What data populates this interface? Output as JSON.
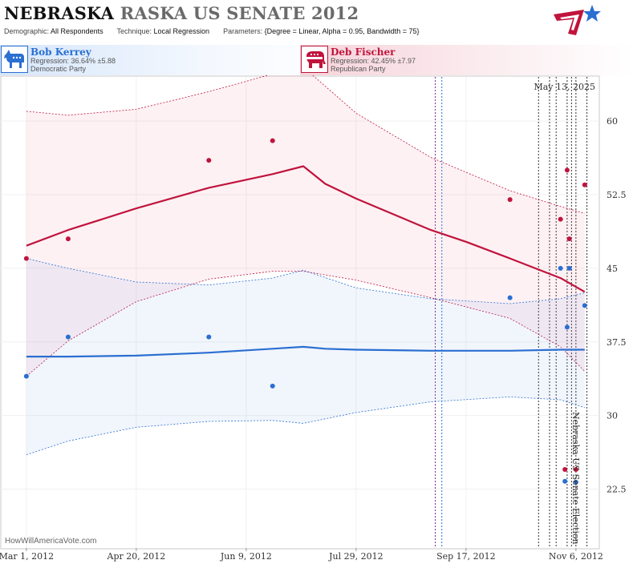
{
  "header": {
    "state": "NEBRASKA",
    "race": "RASKA US SENATE 2012",
    "demographic_label": "Demographic:",
    "demographic_value": "All Respondents",
    "technique_label": "Technique:",
    "technique_value": "Local Regression",
    "parameters_label": "Parameters:",
    "parameters_value": "{Degree = Linear, Alpha = 0.95, Bandwidth = 75}"
  },
  "legend": {
    "dem": {
      "name": "Bob Kerrey",
      "regression": "Regression: 36.64% ±5.88",
      "party": "Democratic Party",
      "color": "#2a6fd1"
    },
    "rep": {
      "name": "Deb Fischer",
      "regression": "Regression: 42.45% ±7.97",
      "party": "Republican Party",
      "color": "#c0143c"
    }
  },
  "chart_data": {
    "type": "line",
    "x_axis": {
      "min": "2012-02-18",
      "max": "2012-11-17",
      "ticks": [
        {
          "date": "2012-03-01",
          "label": "Mar 1, 2012"
        },
        {
          "date": "2012-04-20",
          "label": "Apr 20, 2012"
        },
        {
          "date": "2012-06-09",
          "label": "Jun 9, 2012"
        },
        {
          "date": "2012-07-29",
          "label": "Jul 29, 2012"
        },
        {
          "date": "2012-09-17",
          "label": "Sep 17, 2012"
        },
        {
          "date": "2012-11-06",
          "label": "Nov 6, 2012"
        }
      ]
    },
    "y_axis": {
      "min": 16.5,
      "max": 64.5,
      "ticks": [
        {
          "value": 22.5,
          "label": "22.5"
        },
        {
          "value": 30,
          "label": "30"
        },
        {
          "value": 37.5,
          "label": "37.5"
        },
        {
          "value": 45,
          "label": "45"
        },
        {
          "value": 52.5,
          "label": "52.5"
        },
        {
          "value": 60,
          "label": "60"
        }
      ]
    },
    "date_stamp": "May 13, 2025",
    "event_label": "Nebraska US Senate Election",
    "credit": "HowWillAmericaVote.com",
    "series": [
      {
        "name": "Deb Fischer",
        "color": "#c0143c",
        "points": [
          {
            "date": "2012-03-01",
            "value": 46.0
          },
          {
            "date": "2012-03-20",
            "value": 48.0
          },
          {
            "date": "2012-05-23",
            "value": 56.0
          },
          {
            "date": "2012-06-21",
            "value": 58.0
          },
          {
            "date": "2012-10-07",
            "value": 52.0
          },
          {
            "date": "2012-10-30",
            "value": 50.0
          },
          {
            "date": "2012-11-01",
            "value": 24.5
          },
          {
            "date": "2012-11-02",
            "value": 55.0
          },
          {
            "date": "2012-11-03",
            "value": 48.0
          },
          {
            "date": "2012-11-06",
            "value": 24.5
          },
          {
            "date": "2012-11-10",
            "value": 53.5
          }
        ],
        "trend": [
          {
            "date": "2012-03-01",
            "value": 47.3
          },
          {
            "date": "2012-03-20",
            "value": 48.9
          },
          {
            "date": "2012-04-20",
            "value": 51.1
          },
          {
            "date": "2012-05-23",
            "value": 53.2
          },
          {
            "date": "2012-06-21",
            "value": 54.6
          },
          {
            "date": "2012-07-05",
            "value": 55.4
          },
          {
            "date": "2012-07-15",
            "value": 53.6
          },
          {
            "date": "2012-07-29",
            "value": 52.1
          },
          {
            "date": "2012-09-01",
            "value": 48.9
          },
          {
            "date": "2012-09-17",
            "value": 47.7
          },
          {
            "date": "2012-10-07",
            "value": 46.0
          },
          {
            "date": "2012-10-30",
            "value": 44.0
          },
          {
            "date": "2012-11-10",
            "value": 42.6
          }
        ],
        "band_upper": [
          {
            "date": "2012-03-01",
            "value": 61.0
          },
          {
            "date": "2012-03-20",
            "value": 60.6
          },
          {
            "date": "2012-04-20",
            "value": 61.2
          },
          {
            "date": "2012-05-23",
            "value": 63.0
          },
          {
            "date": "2012-06-21",
            "value": 64.8
          },
          {
            "date": "2012-07-05",
            "value": 65.5
          },
          {
            "date": "2012-07-29",
            "value": 60.8
          },
          {
            "date": "2012-09-01",
            "value": 56.3
          },
          {
            "date": "2012-10-07",
            "value": 52.9
          },
          {
            "date": "2012-10-30",
            "value": 51.3
          },
          {
            "date": "2012-11-10",
            "value": 50.6
          }
        ],
        "band_lower": [
          {
            "date": "2012-03-01",
            "value": 34.0
          },
          {
            "date": "2012-03-20",
            "value": 37.6
          },
          {
            "date": "2012-04-20",
            "value": 41.6
          },
          {
            "date": "2012-05-23",
            "value": 43.9
          },
          {
            "date": "2012-06-21",
            "value": 44.7
          },
          {
            "date": "2012-07-05",
            "value": 44.7
          },
          {
            "date": "2012-07-29",
            "value": 43.8
          },
          {
            "date": "2012-09-01",
            "value": 42.0
          },
          {
            "date": "2012-10-07",
            "value": 39.9
          },
          {
            "date": "2012-10-30",
            "value": 37.0
          },
          {
            "date": "2012-11-10",
            "value": 34.5
          }
        ]
      },
      {
        "name": "Bob Kerrey",
        "color": "#2a6fd1",
        "points": [
          {
            "date": "2012-03-01",
            "value": 34.0
          },
          {
            "date": "2012-03-20",
            "value": 38.0
          },
          {
            "date": "2012-05-23",
            "value": 38.0
          },
          {
            "date": "2012-06-21",
            "value": 33.0
          },
          {
            "date": "2012-10-07",
            "value": 42.0
          },
          {
            "date": "2012-10-30",
            "value": 45.0
          },
          {
            "date": "2012-11-01",
            "value": 23.3
          },
          {
            "date": "2012-11-02",
            "value": 39.0
          },
          {
            "date": "2012-11-03",
            "value": 45.0
          },
          {
            "date": "2012-11-06",
            "value": 23.2
          },
          {
            "date": "2012-11-10",
            "value": 41.2
          }
        ],
        "trend": [
          {
            "date": "2012-03-01",
            "value": 36.0
          },
          {
            "date": "2012-03-20",
            "value": 36.0
          },
          {
            "date": "2012-04-20",
            "value": 36.1
          },
          {
            "date": "2012-05-23",
            "value": 36.4
          },
          {
            "date": "2012-06-21",
            "value": 36.8
          },
          {
            "date": "2012-07-05",
            "value": 37.0
          },
          {
            "date": "2012-07-15",
            "value": 36.8
          },
          {
            "date": "2012-07-29",
            "value": 36.7
          },
          {
            "date": "2012-09-01",
            "value": 36.6
          },
          {
            "date": "2012-10-07",
            "value": 36.6
          },
          {
            "date": "2012-10-30",
            "value": 36.7
          },
          {
            "date": "2012-11-10",
            "value": 36.7
          }
        ],
        "band_upper": [
          {
            "date": "2012-03-01",
            "value": 46.0
          },
          {
            "date": "2012-03-20",
            "value": 45.0
          },
          {
            "date": "2012-04-20",
            "value": 43.6
          },
          {
            "date": "2012-05-23",
            "value": 43.3
          },
          {
            "date": "2012-06-21",
            "value": 44.0
          },
          {
            "date": "2012-07-05",
            "value": 44.8
          },
          {
            "date": "2012-07-29",
            "value": 43.0
          },
          {
            "date": "2012-09-01",
            "value": 41.9
          },
          {
            "date": "2012-10-07",
            "value": 41.4
          },
          {
            "date": "2012-10-30",
            "value": 41.9
          },
          {
            "date": "2012-11-10",
            "value": 42.5
          }
        ],
        "band_lower": [
          {
            "date": "2012-03-01",
            "value": 26.0
          },
          {
            "date": "2012-03-20",
            "value": 27.4
          },
          {
            "date": "2012-04-20",
            "value": 28.8
          },
          {
            "date": "2012-05-23",
            "value": 29.4
          },
          {
            "date": "2012-06-21",
            "value": 29.5
          },
          {
            "date": "2012-07-05",
            "value": 29.2
          },
          {
            "date": "2012-07-29",
            "value": 30.3
          },
          {
            "date": "2012-09-01",
            "value": 31.4
          },
          {
            "date": "2012-10-07",
            "value": 31.9
          },
          {
            "date": "2012-10-30",
            "value": 31.6
          },
          {
            "date": "2012-11-10",
            "value": 30.8
          }
        ]
      }
    ],
    "vertical_markers": [
      {
        "date": "2012-09-03",
        "color": "#8a2a8a"
      },
      {
        "date": "2012-09-06",
        "color": "#2a6fd1"
      },
      {
        "date": "2012-10-20",
        "color": "#333333"
      },
      {
        "date": "2012-10-25",
        "color": "#333333"
      },
      {
        "date": "2012-10-28",
        "color": "#333333"
      },
      {
        "date": "2012-11-02",
        "color": "#333333"
      },
      {
        "date": "2012-11-04",
        "color": "#333333"
      },
      {
        "date": "2012-11-06",
        "color": "#333333"
      },
      {
        "date": "2012-11-11",
        "color": "#333333"
      }
    ]
  }
}
